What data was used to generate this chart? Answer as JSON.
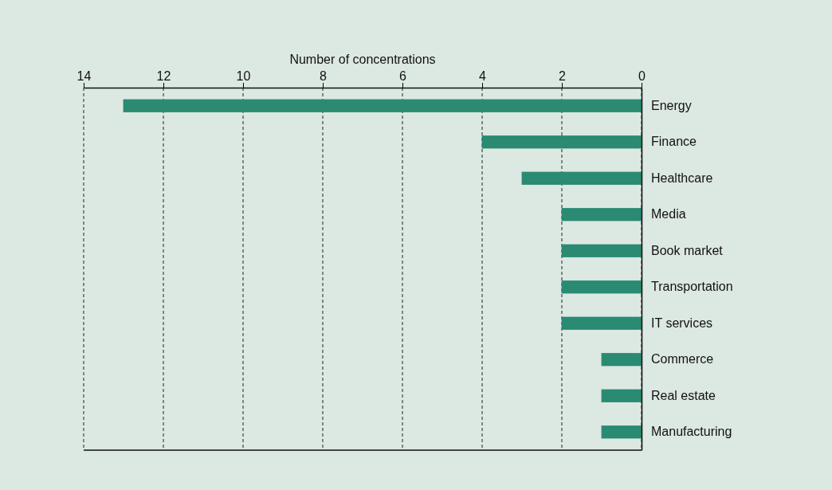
{
  "chart_data": {
    "type": "bar",
    "orientation": "horizontal",
    "xlabel": "Number of concentrations",
    "categories": [
      "Energy",
      "Finance",
      "Healthcare",
      "Media",
      "Book market",
      "Transportation",
      "IT services",
      "Commerce",
      "Real estate",
      "Manufacturing"
    ],
    "values": [
      13,
      4,
      3,
      2,
      2,
      2,
      2,
      1,
      1,
      1
    ],
    "color": "#2a8a72",
    "xlim": [
      14,
      0
    ],
    "xticks": [
      0,
      2,
      4,
      6,
      8,
      10,
      12,
      14
    ],
    "grid": "x"
  }
}
